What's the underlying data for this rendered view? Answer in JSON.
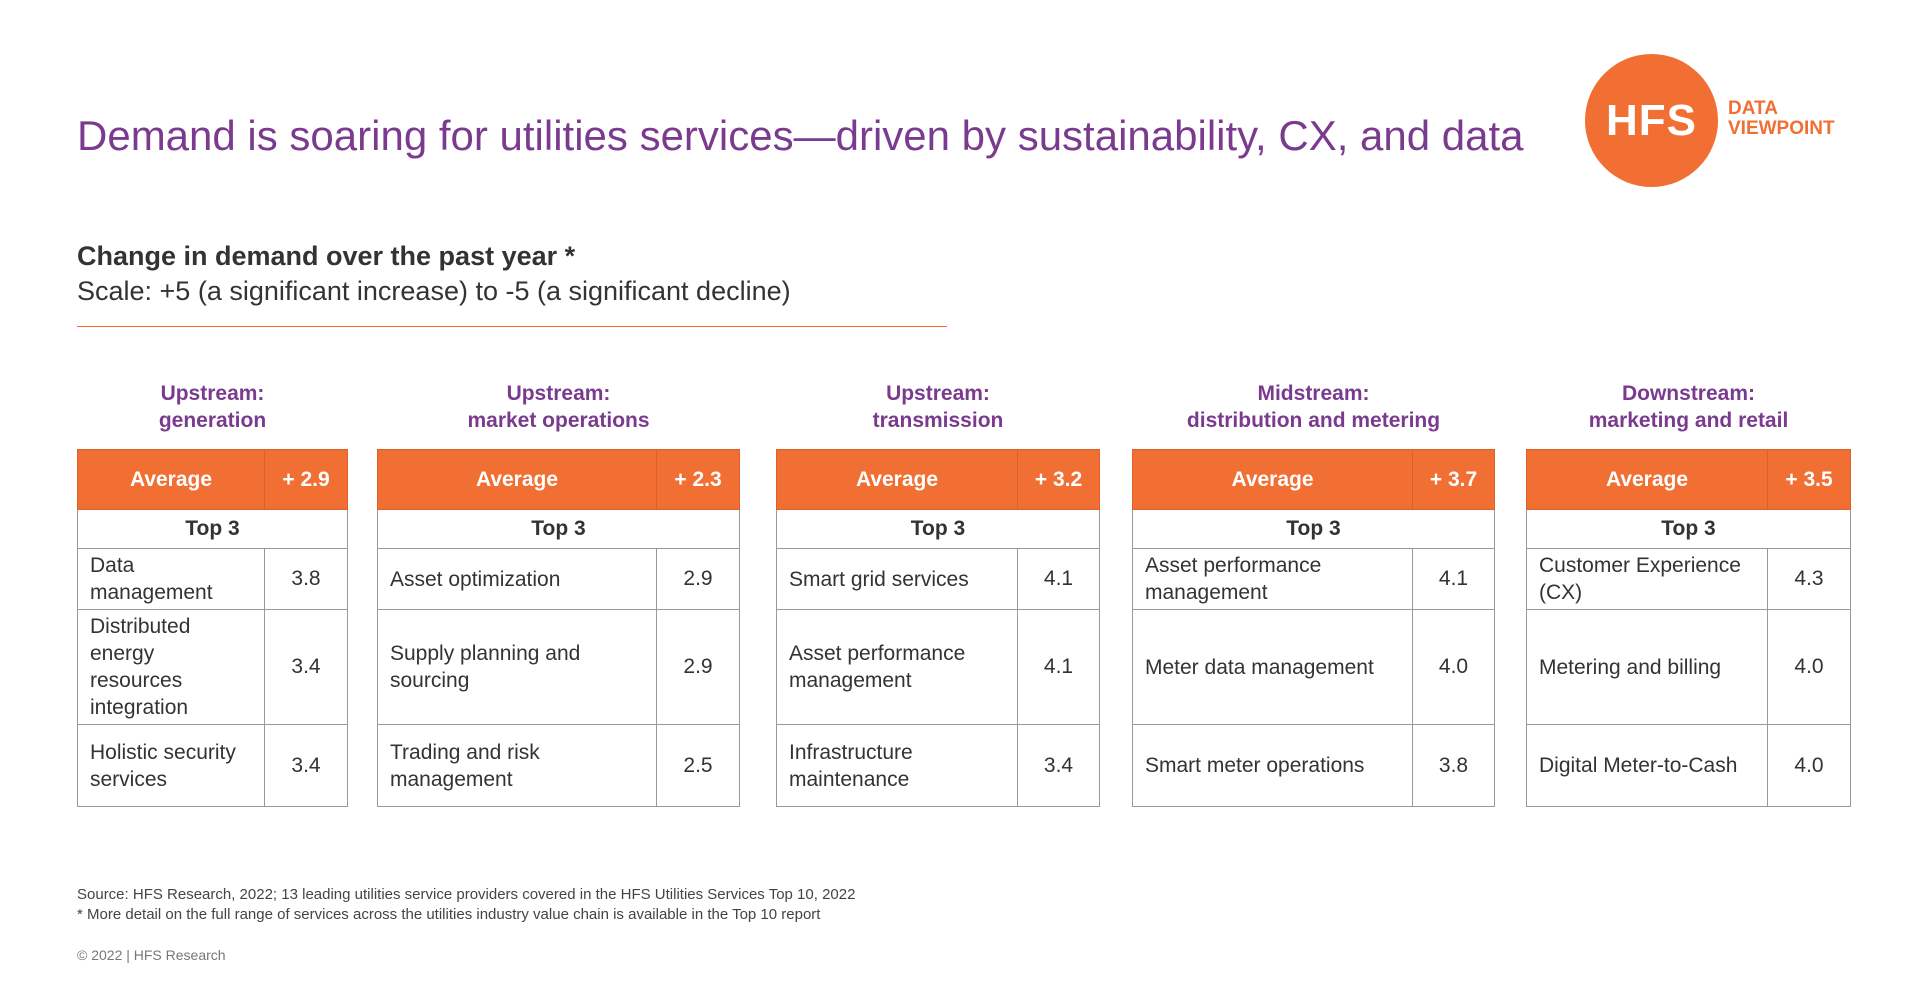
{
  "title": "Demand is soaring for utilities services—driven by sustainability, CX, and data",
  "logo": {
    "mark": "HFS",
    "tag_line1": "DATA",
    "tag_line2": "VIEWPOINT"
  },
  "subtitle": "Change in demand over the past year *",
  "scale": "Scale: +5 (a significant increase) to -5 (a significant decline)",
  "avg_label": "Average",
  "top3_label": "Top 3",
  "columns": [
    {
      "head1": "Upstream:",
      "head2": "generation",
      "avg": "+ 2.9",
      "items": [
        {
          "name": "Data management",
          "score": "3.8"
        },
        {
          "name": "Distributed energy resources integration",
          "score": "3.4"
        },
        {
          "name": "Holistic security services",
          "score": "3.4"
        }
      ]
    },
    {
      "head1": "Upstream:",
      "head2": "market operations",
      "avg": "+ 2.3",
      "items": [
        {
          "name": "Asset optimization",
          "score": "2.9"
        },
        {
          "name": "Supply planning and sourcing",
          "score": "2.9"
        },
        {
          "name": "Trading and risk management",
          "score": "2.5"
        }
      ]
    },
    {
      "head1": "Upstream:",
      "head2": "transmission",
      "avg": "+ 3.2",
      "items": [
        {
          "name": "Smart grid services",
          "score": "4.1"
        },
        {
          "name": "Asset performance management",
          "score": "4.1"
        },
        {
          "name": "Infrastructure maintenance",
          "score": "3.4"
        }
      ]
    },
    {
      "head1": "Midstream:",
      "head2": "distribution and metering",
      "avg": "+ 3.7",
      "items": [
        {
          "name": "Asset performance management",
          "score": "4.1"
        },
        {
          "name": "Meter data management",
          "score": "4.0"
        },
        {
          "name": "Smart meter operations",
          "score": "3.8"
        }
      ]
    },
    {
      "head1": "Downstream:",
      "head2": "marketing and retail",
      "avg": "+ 3.5",
      "items": [
        {
          "name": "Customer Experience (CX)",
          "score": "4.3"
        },
        {
          "name": "Metering and billing",
          "score": "4.0"
        },
        {
          "name": "Digital Meter-to-Cash",
          "score": "4.0"
        }
      ]
    }
  ],
  "source_line1": "Source: HFS Research, 2022; 13 leading utilities service providers covered in the HFS Utilities Services Top 10, 2022",
  "source_line2": "* More detail on the full range of services across the utilities industry value chain is available in the Top 10 report",
  "copyright": "© 2022 | HFS Research",
  "colors": {
    "accent": "#f26f33",
    "title": "#7a3b8f"
  }
}
